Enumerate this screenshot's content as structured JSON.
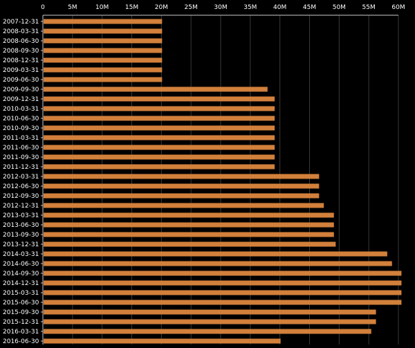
{
  "chart_data": {
    "type": "bar",
    "orientation": "horizontal",
    "title": "",
    "xlabel": "",
    "ylabel": "",
    "xlim": [
      0,
      60000000
    ],
    "x_ticks": [
      0,
      5000000,
      10000000,
      15000000,
      20000000,
      25000000,
      30000000,
      35000000,
      40000000,
      45000000,
      50000000,
      55000000,
      60000000
    ],
    "x_tick_labels": [
      "0",
      "5M",
      "10M",
      "15M",
      "20M",
      "25M",
      "30M",
      "35M",
      "40M",
      "45M",
      "50M",
      "55M",
      "60M"
    ],
    "x_axis_position": "top",
    "grid": "vertical",
    "legend": "none",
    "colors": {
      "background": "#000000",
      "bar": "#d2803b",
      "grid": "#3a3a3a",
      "text": "#ffffff",
      "axis": "#cccccc"
    },
    "categories": [
      "2007-12-31",
      "2008-03-31",
      "2008-06-30",
      "2008-09-30",
      "2008-12-31",
      "2009-03-31",
      "2009-06-30",
      "2009-09-30",
      "2009-12-31",
      "2010-03-31",
      "2010-06-30",
      "2010-09-30",
      "2011-03-31",
      "2011-06-30",
      "2011-09-30",
      "2011-12-31",
      "2012-03-31",
      "2012-06-30",
      "2012-09-30",
      "2012-12-31",
      "2013-03-31",
      "2013-06-30",
      "2013-09-30",
      "2013-12-31",
      "2014-03-31",
      "2014-06-30",
      "2014-09-30",
      "2014-12-31",
      "2015-03-31",
      "2015-06-30",
      "2015-09-30",
      "2015-12-31",
      "2016-03-31",
      "2016-06-30"
    ],
    "values": [
      20000000,
      20000000,
      20000000,
      20000000,
      20000000,
      20000000,
      20000000,
      37800000,
      39000000,
      39000000,
      39000000,
      39000000,
      39000000,
      39000000,
      39000000,
      39000000,
      46500000,
      46500000,
      46500000,
      47300000,
      49000000,
      49000000,
      49000000,
      49300000,
      58000000,
      58800000,
      60400000,
      60400000,
      60400000,
      60400000,
      56100000,
      56100000,
      55300000,
      40000000
    ]
  }
}
